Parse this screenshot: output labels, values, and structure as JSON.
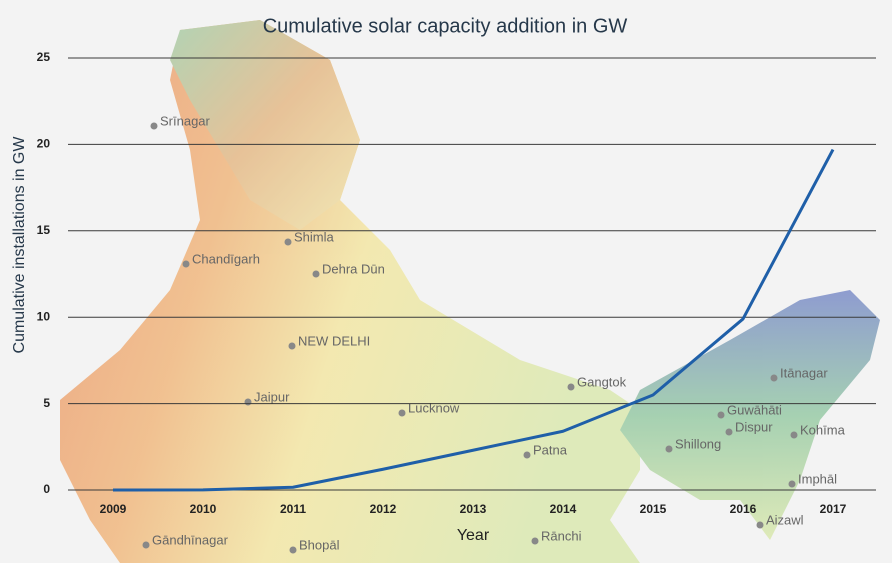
{
  "chart_data": {
    "type": "line",
    "title": "Cumulative solar capacity addition in GW",
    "x_label": "Year",
    "y_label": "Cumulative installations in GW",
    "categories": [
      "2009",
      "2010",
      "2011",
      "2012",
      "2013",
      "2014",
      "2015",
      "2016",
      "2017"
    ],
    "series": [
      {
        "name": "Cumulative installations",
        "color": "#1f5fa8",
        "values": [
          0,
          0.01,
          0.16,
          1.2,
          2.3,
          3.4,
          5.5,
          9.9,
          19.7
        ]
      }
    ],
    "ylim": [
      0,
      25
    ],
    "yticks": [
      0,
      5,
      10,
      15,
      20,
      25
    ],
    "grid": true
  },
  "map_labels": [
    "Srīnagar",
    "Shimla",
    "Chandīgarh",
    "Dehra Dūn",
    "NEW DELHI",
    "Jaipur",
    "Lucknow",
    "Patna",
    "Gangtok",
    "Itānagar",
    "Guwāhāti",
    "Dispur",
    "Shillong",
    "Kohīma",
    "Imphāl",
    "Gāndhīnagar",
    "Bhopāl",
    "Rānchi",
    "Aizawl"
  ]
}
